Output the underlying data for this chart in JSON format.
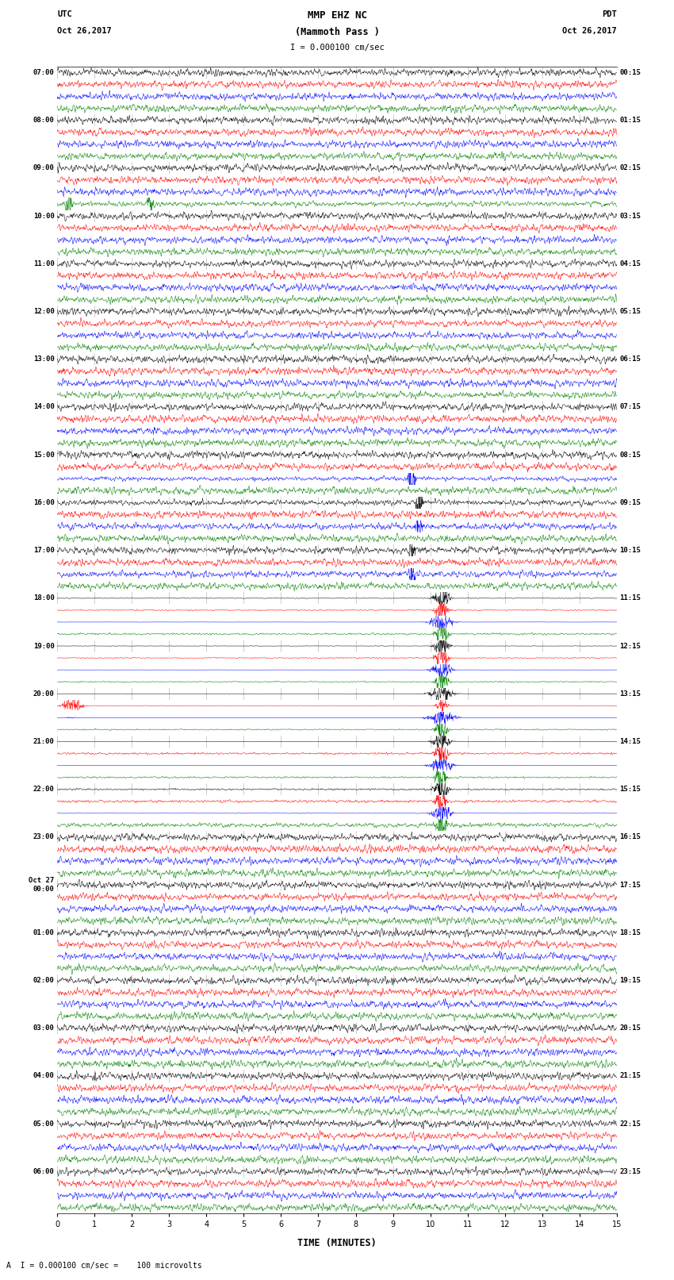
{
  "title_line1": "MMP EHZ NC",
  "title_line2": "(Mammoth Pass )",
  "scale_label": "I = 0.000100 cm/sec",
  "bottom_label": "A  I = 0.000100 cm/sec =    100 microvolts",
  "xlabel": "TIME (MINUTES)",
  "left_timezone": "UTC",
  "left_date": "Oct 26,2017",
  "right_timezone": "PDT",
  "right_date": "Oct 26,2017",
  "left_times": [
    "07:00",
    "08:00",
    "09:00",
    "10:00",
    "11:00",
    "12:00",
    "13:00",
    "14:00",
    "15:00",
    "16:00",
    "17:00",
    "18:00",
    "19:00",
    "20:00",
    "21:00",
    "22:00",
    "23:00",
    "Oct 27\n00:00",
    "01:00",
    "02:00",
    "03:00",
    "04:00",
    "05:00",
    "06:00"
  ],
  "right_times": [
    "00:15",
    "01:15",
    "02:15",
    "03:15",
    "04:15",
    "05:15",
    "06:15",
    "07:15",
    "08:15",
    "09:15",
    "10:15",
    "11:15",
    "12:15",
    "13:15",
    "14:15",
    "15:15",
    "16:15",
    "17:15",
    "18:15",
    "19:15",
    "20:15",
    "21:15",
    "22:15",
    "23:15"
  ],
  "n_rows": 24,
  "n_traces_per_row": 4,
  "colors": [
    "black",
    "red",
    "blue",
    "green"
  ],
  "bg_color": "white",
  "minutes_per_row": 15,
  "x_ticks": [
    0,
    1,
    2,
    3,
    4,
    5,
    6,
    7,
    8,
    9,
    10,
    11,
    12,
    13,
    14,
    15
  ],
  "figsize": [
    8.5,
    16.13
  ],
  "dpi": 100
}
